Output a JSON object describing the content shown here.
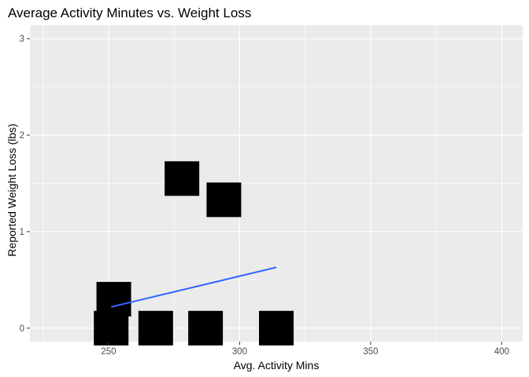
{
  "chart_data": {
    "type": "scatter",
    "title": "Average Activity Minutes vs. Weight Loss",
    "xlabel": "Avg. Activity Mins",
    "ylabel": "Reported Weight Loss (lbs)",
    "xlim": [
      220,
      408
    ],
    "ylim": [
      -0.14,
      3.14
    ],
    "xticks": [
      250,
      300,
      350,
      400
    ],
    "yticks": [
      0,
      1,
      2,
      3
    ],
    "xtick_labels": [
      "250",
      "300",
      "350",
      "400"
    ],
    "ytick_labels": [
      "0",
      "1",
      "2",
      "3"
    ],
    "grid": true,
    "points": [
      {
        "x": 252,
        "y": 0.3
      },
      {
        "x": 251,
        "y": 0.0
      },
      {
        "x": 268,
        "y": 0.0
      },
      {
        "x": 287,
        "y": 0.0
      },
      {
        "x": 314,
        "y": 0.0
      },
      {
        "x": 278,
        "y": 1.55
      },
      {
        "x": 294,
        "y": 1.33
      }
    ],
    "trend_line": {
      "x": [
        251,
        314
      ],
      "y": [
        0.22,
        0.63
      ]
    },
    "colors": {
      "panel": "#ebebeb",
      "grid_major": "#ffffff",
      "points": "#000000",
      "trend": "#3366ff",
      "tick_text": "#4d4d4d"
    }
  }
}
